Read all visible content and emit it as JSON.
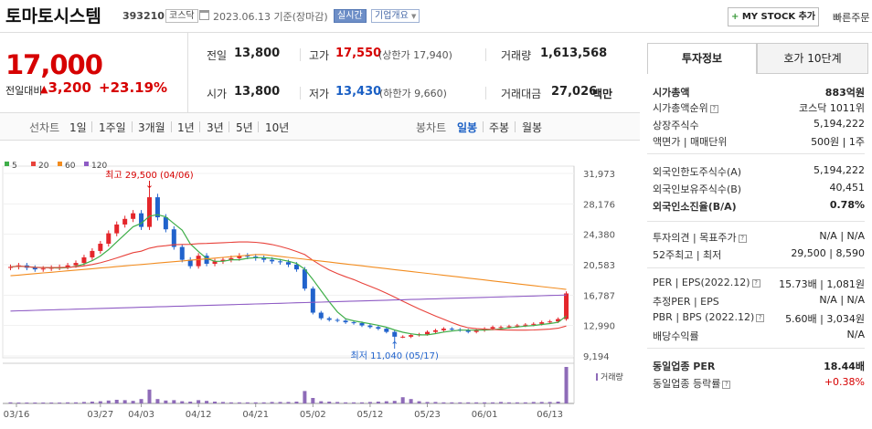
{
  "header": {
    "name": "토마토시스템",
    "code": "393210",
    "market": "코스닥",
    "date": "2023.06.13 기준(장마감)",
    "realtime": "실시간",
    "overview": "기업개요",
    "mystock": "MY STOCK 추가",
    "mystock_plus": "+",
    "quick_order": "빠른주문"
  },
  "price": {
    "current": "17,000",
    "change_label": "전일대비",
    "change_arrow": "▲",
    "change": "3,200",
    "change_pct": "+23.19%"
  },
  "stats": {
    "prev_label": "전일",
    "prev": "13,800",
    "high_label": "고가",
    "high": "17,550",
    "high_sub": "(상한가 17,940)",
    "vol_label": "거래량",
    "vol": "1,613,568",
    "open_label": "시가",
    "open": "13,800",
    "low_label": "저가",
    "low": "13,430",
    "low_sub": "(하한가 9,660)",
    "amt_label": "거래대금",
    "amt": "27,026",
    "amt_unit": "백만"
  },
  "periods": {
    "line_label": "선차트",
    "items": [
      "1일",
      "1주일",
      "3개월",
      "1년",
      "3년",
      "5년",
      "10년"
    ],
    "candle_label": "봉차트",
    "candle_items": [
      "일봉",
      "주봉",
      "월봉"
    ]
  },
  "right": {
    "tab1": "투자정보",
    "tab2": "호가 10단계",
    "rows": [
      {
        "l": "시가총액",
        "v": "883억원",
        "b": true
      },
      {
        "l": "시가총액순위",
        "v": "코스닥 1011위"
      },
      {
        "l": "상장주식수",
        "v": "5,194,222"
      },
      {
        "l": "액면가 | 매매단위",
        "v": "500원 | 1주"
      },
      {
        "l": "외국인한도주식수(A)",
        "v": "5,194,222"
      },
      {
        "l": "외국인보유주식수(B)",
        "v": "40,451"
      },
      {
        "l": "외국인소진율(B/A)",
        "v": "0.78%",
        "b": true
      },
      {
        "l": "투자의견 | 목표주가",
        "v": "N/A | N/A"
      },
      {
        "l": "52주최고 | 최저",
        "v": "29,500 | 8,590"
      },
      {
        "l": "PER | EPS(2022.12)",
        "v": "15.73배 | 1,081원"
      },
      {
        "l": "추정PER | EPS",
        "v": "N/A | N/A"
      },
      {
        "l": "PBR | BPS (2022.12)",
        "v": "5.60배 | 3,034원"
      },
      {
        "l": "배당수익률",
        "v": "N/A"
      },
      {
        "l": "동일업종 PER",
        "v": "18.44배",
        "b": true
      },
      {
        "l": "동일업종 등락률",
        "v": "+0.38%",
        "red": true
      }
    ]
  },
  "chart_data": {
    "type": "candlestick",
    "ma_legend": [
      {
        "name": "5",
        "color": "#3fae49"
      },
      {
        "name": "20",
        "color": "#e8423b"
      },
      {
        "name": "60",
        "color": "#f28c1f"
      },
      {
        "name": "120",
        "color": "#8e5bc4"
      }
    ],
    "y_ticks": [
      "31,973",
      "28,176",
      "24,380",
      "20,583",
      "16,787",
      "12,990",
      "9,194"
    ],
    "x_ticks": [
      "03/16",
      "03/27",
      "04/03",
      "04/12",
      "04/21",
      "05/02",
      "05/12",
      "05/23",
      "06/01",
      "06/13"
    ],
    "high_note": "최고 29,500 (04/06)",
    "low_note": "최저 11,040 (05/17)",
    "volume_label": "거래량",
    "closes": [
      20300,
      20500,
      20200,
      20000,
      20100,
      20200,
      20300,
      20500,
      20800,
      21500,
      22300,
      23200,
      24500,
      25600,
      26300,
      27000,
      25300,
      29000,
      26500,
      25000,
      22800,
      21200,
      20400,
      21700,
      20700,
      21000,
      21200,
      21400,
      21700,
      21600,
      21400,
      21200,
      21000,
      20900,
      20600,
      20000,
      17600,
      14600,
      13900,
      13700,
      13600,
      13400,
      13300,
      13000,
      12800,
      12600,
      12200,
      11600,
      11600,
      11800,
      11900,
      12200,
      12400,
      12600,
      12500,
      12400,
      12200,
      12400,
      12600,
      12800,
      12800,
      12900,
      13000,
      13100,
      13200,
      13400,
      13500,
      13800,
      17000
    ],
    "volumes": [
      3,
      2,
      2,
      1,
      2,
      2,
      2,
      3,
      3,
      4,
      5,
      6,
      8,
      10,
      9,
      7,
      12,
      38,
      12,
      8,
      9,
      6,
      5,
      9,
      7,
      5,
      4,
      3,
      3,
      3,
      3,
      3,
      4,
      4,
      4,
      5,
      34,
      15,
      6,
      5,
      4,
      3,
      3,
      3,
      4,
      5,
      6,
      7,
      17,
      12,
      6,
      4,
      4,
      3,
      3,
      3,
      3,
      3,
      3,
      3,
      4,
      3,
      3,
      3,
      4,
      4,
      4,
      5,
      100
    ]
  }
}
